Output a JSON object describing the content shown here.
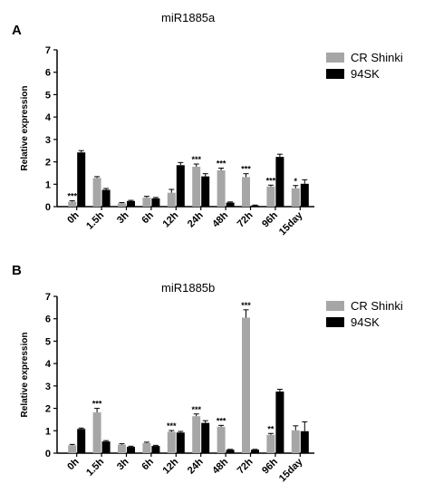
{
  "colors": {
    "series1": "#a6a6a6",
    "series2": "#000000",
    "axis": "#000000"
  },
  "chart_data": [
    {
      "type": "bar",
      "panel_label": "A",
      "title": "miR1885a",
      "ylabel": "Relative expression",
      "xlabel": "",
      "ylim": [
        0,
        7
      ],
      "yticks": [
        "0",
        "1",
        "2",
        "3",
        "4",
        "5",
        "6",
        "7"
      ],
      "grid": false,
      "legend_position": "top-right",
      "categories": [
        "0h",
        "1.5h",
        "3h",
        "6h",
        "12h",
        "24h",
        "48h",
        "72h",
        "96h",
        "15day"
      ],
      "series": [
        {
          "name": "CR Shinki",
          "values": [
            0.22,
            1.28,
            0.15,
            0.4,
            0.62,
            1.78,
            1.62,
            1.32,
            0.9,
            0.82
          ],
          "errors": [
            0.04,
            0.06,
            0.03,
            0.06,
            0.15,
            0.12,
            0.1,
            0.15,
            0.06,
            0.12
          ]
        },
        {
          "name": "94SK",
          "values": [
            2.42,
            0.75,
            0.25,
            0.37,
            1.85,
            1.35,
            0.18,
            0.05,
            2.22,
            1.02
          ],
          "errors": [
            0.08,
            0.06,
            0.03,
            0.04,
            0.12,
            0.12,
            0.03,
            0.02,
            0.12,
            0.18
          ]
        }
      ],
      "annotations": [
        "***",
        "",
        "",
        "",
        "",
        "***",
        "***",
        "***",
        "***",
        "*"
      ]
    },
    {
      "type": "bar",
      "panel_label": "B",
      "title": "miR1885b",
      "ylabel": "Relative expression",
      "xlabel": "",
      "ylim": [
        0,
        7
      ],
      "yticks": [
        "0",
        "1",
        "2",
        "3",
        "4",
        "5",
        "6",
        "7"
      ],
      "grid": false,
      "legend_position": "top-right",
      "categories": [
        "0h",
        "1.5h",
        "3h",
        "6h",
        "12h",
        "24h",
        "48h",
        "72h",
        "96h",
        "15day"
      ],
      "series": [
        {
          "name": "CR Shinki",
          "values": [
            0.35,
            1.82,
            0.38,
            0.45,
            0.95,
            1.65,
            1.18,
            6.05,
            0.82,
            1.02
          ],
          "errors": [
            0.04,
            0.18,
            0.04,
            0.04,
            0.06,
            0.1,
            0.06,
            0.35,
            0.06,
            0.2
          ]
        },
        {
          "name": "94SK",
          "values": [
            1.08,
            0.52,
            0.28,
            0.32,
            0.92,
            1.35,
            0.15,
            0.15,
            2.75,
            0.98
          ],
          "errors": [
            0.04,
            0.04,
            0.03,
            0.03,
            0.05,
            0.1,
            0.02,
            0.02,
            0.1,
            0.42
          ]
        }
      ],
      "annotations": [
        "",
        "***",
        "",
        "",
        "***",
        "***",
        "***",
        "***",
        "**",
        ""
      ]
    }
  ]
}
